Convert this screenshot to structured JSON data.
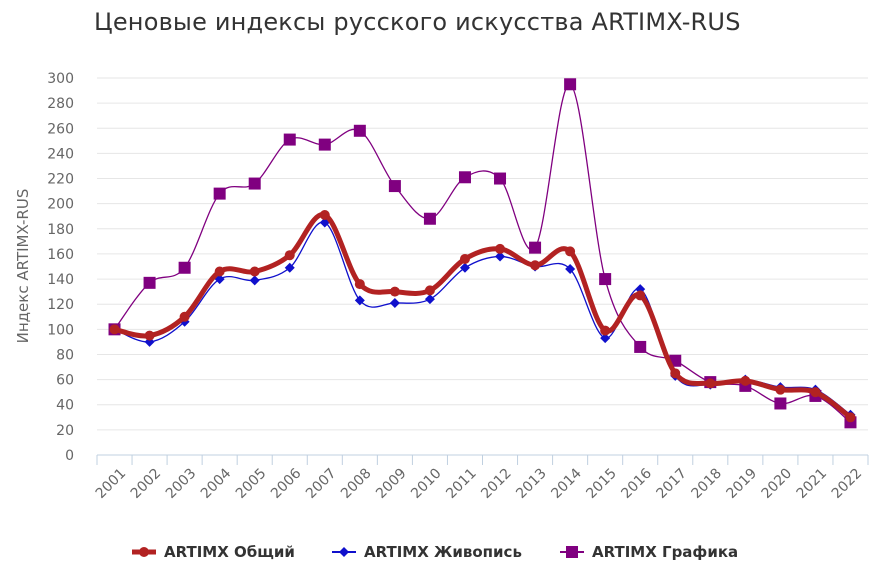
{
  "title": "Ценовые индексы русского искусства ARTIMX-RUS",
  "chart_data": {
    "type": "line",
    "title": "Ценовые индексы русского искусства ARTIMX-RUS",
    "xlabel": "",
    "ylabel": "Индекс ARTIMX-RUS",
    "ylim": [
      0,
      300
    ],
    "yticks": [
      0,
      20,
      40,
      60,
      80,
      100,
      120,
      140,
      160,
      180,
      200,
      220,
      240,
      260,
      280,
      300
    ],
    "categories": [
      "2001",
      "2002",
      "2003",
      "2004",
      "2005",
      "2006",
      "2007",
      "2008",
      "2009",
      "2010",
      "2011",
      "2012",
      "2013",
      "2014",
      "2015",
      "2016",
      "2017",
      "2018",
      "2019",
      "2020",
      "2021",
      "2022"
    ],
    "grid": true,
    "legend": "bottom",
    "series": [
      {
        "name": "ARTIMX Общий",
        "color": "#b22222",
        "marker": "circle",
        "values": [
          100,
          95,
          110,
          146,
          146,
          159,
          191,
          136,
          130,
          131,
          156,
          164,
          151,
          162,
          99,
          127,
          65,
          57,
          59,
          52,
          50,
          30
        ]
      },
      {
        "name": "ARTIMX Живопись",
        "color": "#1010cc",
        "marker": "diamond",
        "values": [
          100,
          90,
          106,
          140,
          139,
          149,
          185,
          123,
          121,
          124,
          149,
          158,
          150,
          148,
          93,
          132,
          63,
          56,
          60,
          54,
          52,
          32
        ]
      },
      {
        "name": "ARTIMX Графика",
        "color": "#800080",
        "marker": "square",
        "values": [
          100,
          137,
          149,
          208,
          216,
          251,
          247,
          258,
          214,
          188,
          221,
          220,
          165,
          295,
          140,
          86,
          75,
          58,
          55,
          41,
          47,
          26
        ]
      }
    ]
  }
}
